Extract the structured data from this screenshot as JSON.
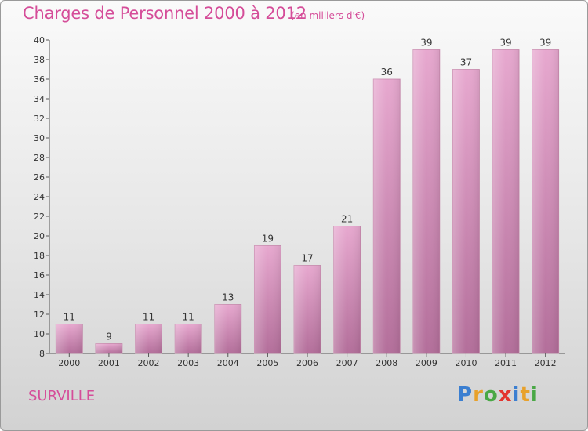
{
  "chart_data": {
    "type": "bar",
    "title": "Charges de Personnel 2000 à 2012",
    "subtitle": "(en milliers d'€)",
    "categories": [
      "2000",
      "2001",
      "2002",
      "2003",
      "2004",
      "2005",
      "2006",
      "2007",
      "2008",
      "2009",
      "2010",
      "2011",
      "2012"
    ],
    "values": [
      11,
      9,
      11,
      11,
      13,
      19,
      17,
      21,
      36,
      39,
      37,
      39,
      39
    ],
    "data_labels": [
      "11",
      "9",
      "11",
      "11",
      "13",
      "19",
      "17",
      "21",
      "36",
      "39",
      "37",
      "39",
      "39"
    ],
    "ylim": [
      8,
      40
    ],
    "yticks": [
      8,
      10,
      12,
      14,
      16,
      18,
      20,
      22,
      24,
      26,
      28,
      30,
      32,
      34,
      36,
      38,
      40
    ],
    "grid": false,
    "bar_color": "#d58bb5"
  },
  "place_name": "SURVILLE",
  "logo": {
    "letters": [
      "P",
      "r",
      "o",
      "x",
      "i",
      "t",
      "i"
    ],
    "colors": [
      "#3b7fd1",
      "#e8a12b",
      "#49a845",
      "#e3342f",
      "#3b7fd1",
      "#e8a12b",
      "#49a845"
    ]
  }
}
